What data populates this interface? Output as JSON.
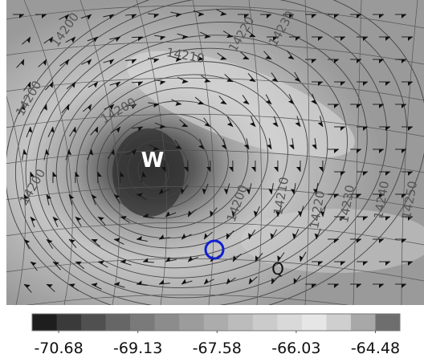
{
  "map": {
    "center_label": "W",
    "point_label": "Q",
    "contour_labels": [
      "14200",
      "14210",
      "14220",
      "14230",
      "14200",
      "14200",
      "14200",
      "14210",
      "14220",
      "14230",
      "14240",
      "14250",
      "14200"
    ],
    "colorbar": {
      "colors": [
        "#1e1e1e",
        "#3a3a3a",
        "#505050",
        "#666666",
        "#7a7a7a",
        "#8c8c8c",
        "#9c9c9c",
        "#acacac",
        "#bcbcbc",
        "#cbcbcb",
        "#d9d9d9",
        "#e6e6e6",
        "#cfcfcf",
        "#a8a8a8",
        "#6e6e6e"
      ],
      "lim": [
        -71.2,
        -64.0
      ],
      "ticks": [
        -70.68,
        -69.13,
        -67.58,
        -66.03,
        -64.48
      ]
    }
  }
}
